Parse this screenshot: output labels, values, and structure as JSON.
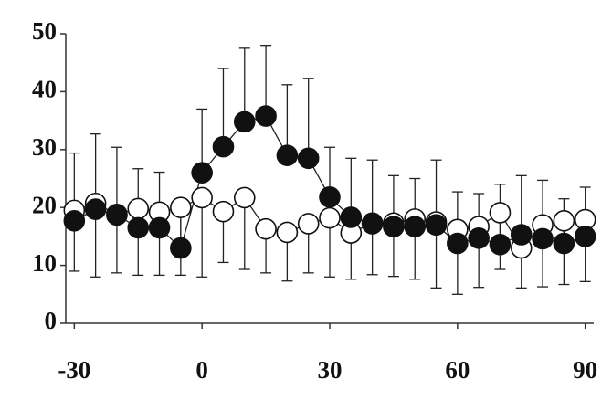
{
  "chart_data": {
    "type": "line",
    "x": [
      -30,
      -25,
      -20,
      -15,
      -10,
      -5,
      0,
      5,
      10,
      15,
      20,
      25,
      30,
      35,
      40,
      45,
      50,
      55,
      60,
      65,
      70,
      75,
      80,
      85,
      90
    ],
    "series": [
      {
        "color": "#ffffff",
        "error_direction": "down",
        "values": [
          19.5,
          20.7,
          18.8,
          19.8,
          19.2,
          20,
          21.7,
          19.3,
          21.7,
          16.3,
          15.7,
          17.2,
          18.2,
          15.6,
          17.3,
          17.3,
          18,
          17.5,
          16.2,
          16.7,
          19.1,
          13,
          17,
          17.7,
          17.9
        ],
        "errors": [
          10.5,
          12.7,
          10.1,
          11.5,
          10.9,
          11.7,
          13.7,
          8.8,
          12.4,
          7.6,
          8.4,
          8.5,
          10.2,
          8,
          8.9,
          9.2,
          10.4,
          11.4,
          11.2,
          10.5,
          9.8,
          6.9,
          10.7,
          11,
          10.7
        ]
      },
      {
        "color": "#111111",
        "error_direction": "up",
        "values": [
          17.7,
          19.7,
          18.7,
          16.5,
          16.5,
          13,
          26,
          30.5,
          34.8,
          35.8,
          29,
          28.5,
          21.8,
          18.3,
          17.2,
          16.7,
          16.7,
          17,
          13.8,
          14.7,
          13.6,
          15.3,
          14.6,
          13.8,
          15
        ],
        "errors": [
          11.7,
          13,
          11.7,
          10.2,
          9.6,
          7,
          11,
          13.5,
          12.7,
          12.2,
          12.2,
          13.8,
          8.6,
          10.2,
          11,
          8.8,
          8.3,
          11.2,
          8.9,
          7.7,
          10.4,
          10.2,
          10.1,
          7.7,
          8.5
        ]
      }
    ],
    "xlim": [
      -32,
      92
    ],
    "xticks": [
      -30,
      0,
      30,
      60,
      90
    ],
    "ylim": [
      0,
      50
    ],
    "yticks": [
      0,
      10,
      20,
      30,
      40,
      50
    ]
  }
}
